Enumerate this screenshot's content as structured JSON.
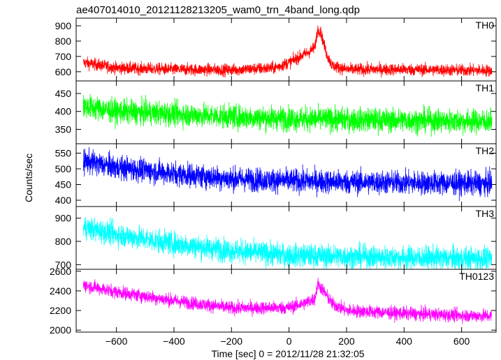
{
  "chart_data": {
    "type": "line",
    "title": "ae407014010_20121128213205_wam0_trn_4band_long.qdp",
    "xlabel": "Time [sec] 0 = 2012/11/28 21:32:05",
    "ylabel": "Counts/sec",
    "xlim": [
      -740,
      720
    ],
    "x_ticks": [
      -600,
      -400,
      -200,
      0,
      200,
      400,
      600
    ],
    "x_tick_labels": [
      "−600",
      "−400",
      "−200",
      "0",
      "200",
      "400",
      "600"
    ],
    "x_data_range": [
      -715,
      705
    ],
    "panels": [
      {
        "name": "TH0",
        "color": "#ff0000",
        "ylim": [
          540,
          950
        ],
        "y_ticks": [
          600,
          700,
          800,
          900
        ],
        "profile": [
          [
            -715,
            660
          ],
          [
            -600,
            625
          ],
          [
            -400,
            615
          ],
          [
            -200,
            612
          ],
          [
            -50,
            625
          ],
          [
            0,
            660
          ],
          [
            40,
            700
          ],
          [
            70,
            730
          ],
          [
            90,
            760
          ],
          [
            100,
            880
          ],
          [
            110,
            860
          ],
          [
            130,
            720
          ],
          [
            150,
            640
          ],
          [
            200,
            615
          ],
          [
            400,
            615
          ],
          [
            600,
            610
          ],
          [
            705,
            608
          ]
        ],
        "noise": 28
      },
      {
        "name": "TH1",
        "color": "#00ff00",
        "ylim": [
          310,
          485
        ],
        "y_ticks": [
          350,
          400,
          450
        ],
        "profile": [
          [
            -715,
            415
          ],
          [
            -600,
            400
          ],
          [
            -400,
            393
          ],
          [
            -200,
            385
          ],
          [
            0,
            380
          ],
          [
            200,
            377
          ],
          [
            400,
            375
          ],
          [
            600,
            373
          ],
          [
            705,
            372
          ]
        ],
        "noise": 24
      },
      {
        "name": "TH2",
        "color": "#0000ff",
        "ylim": [
          380,
          580
        ],
        "y_ticks": [
          400,
          450,
          500,
          550
        ],
        "profile": [
          [
            -715,
            525
          ],
          [
            -600,
            505
          ],
          [
            -400,
            485
          ],
          [
            -200,
            468
          ],
          [
            0,
            462
          ],
          [
            200,
            458
          ],
          [
            400,
            456
          ],
          [
            600,
            454
          ],
          [
            705,
            452
          ]
        ],
        "noise": 27
      },
      {
        "name": "TH3",
        "color": "#00ffff",
        "ylim": [
          680,
          950
        ],
        "y_ticks": [
          700,
          800,
          900
        ],
        "profile": [
          [
            -715,
            860
          ],
          [
            -600,
            830
          ],
          [
            -400,
            790
          ],
          [
            -200,
            760
          ],
          [
            0,
            740
          ],
          [
            200,
            735
          ],
          [
            400,
            730
          ],
          [
            600,
            727
          ],
          [
            705,
            725
          ]
        ],
        "noise": 36
      },
      {
        "name": "TH0123",
        "color": "#ff00ff",
        "ylim": [
          1980,
          2620
        ],
        "y_ticks": [
          2000,
          2200,
          2400,
          2600
        ],
        "profile": [
          [
            -715,
            2460
          ],
          [
            -600,
            2390
          ],
          [
            -400,
            2300
          ],
          [
            -200,
            2225
          ],
          [
            0,
            2230
          ],
          [
            60,
            2280
          ],
          [
            90,
            2320
          ],
          [
            100,
            2470
          ],
          [
            115,
            2420
          ],
          [
            150,
            2270
          ],
          [
            200,
            2200
          ],
          [
            400,
            2170
          ],
          [
            600,
            2150
          ],
          [
            705,
            2145
          ]
        ],
        "noise": 48
      }
    ]
  }
}
